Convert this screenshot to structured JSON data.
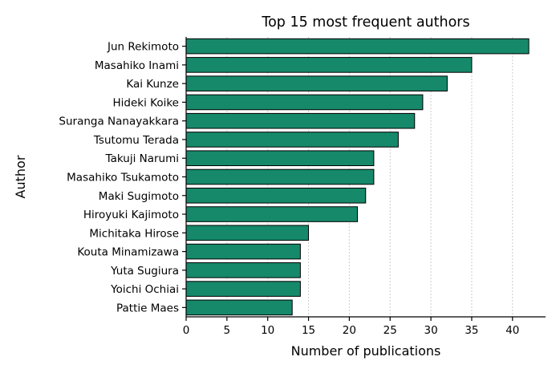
{
  "chart_data": {
    "type": "bar",
    "orientation": "horizontal",
    "title": "Top 15 most frequent authors",
    "xlabel": "Number of publications",
    "ylabel": "Author",
    "categories": [
      "Jun Rekimoto",
      "Masahiko Inami",
      "Kai Kunze",
      "Hideki Koike",
      "Suranga Nanayakkara",
      "Tsutomu Terada",
      "Takuji Narumi",
      "Masahiko Tsukamoto",
      "Maki Sugimoto",
      "Hiroyuki Kajimoto",
      "Michitaka Hirose",
      "Kouta Minamizawa",
      "Yuta Sugiura",
      "Yoichi Ochiai",
      "Pattie Maes"
    ],
    "values": [
      42,
      35,
      32,
      29,
      28,
      26,
      23,
      23,
      22,
      21,
      15,
      14,
      14,
      14,
      13
    ],
    "xlim": [
      0,
      44
    ],
    "xticks": [
      "0",
      "5",
      "10",
      "15",
      "20",
      "25",
      "30",
      "35",
      "40"
    ],
    "grid": "x-axis dotted",
    "bar_color": "#16896a"
  }
}
